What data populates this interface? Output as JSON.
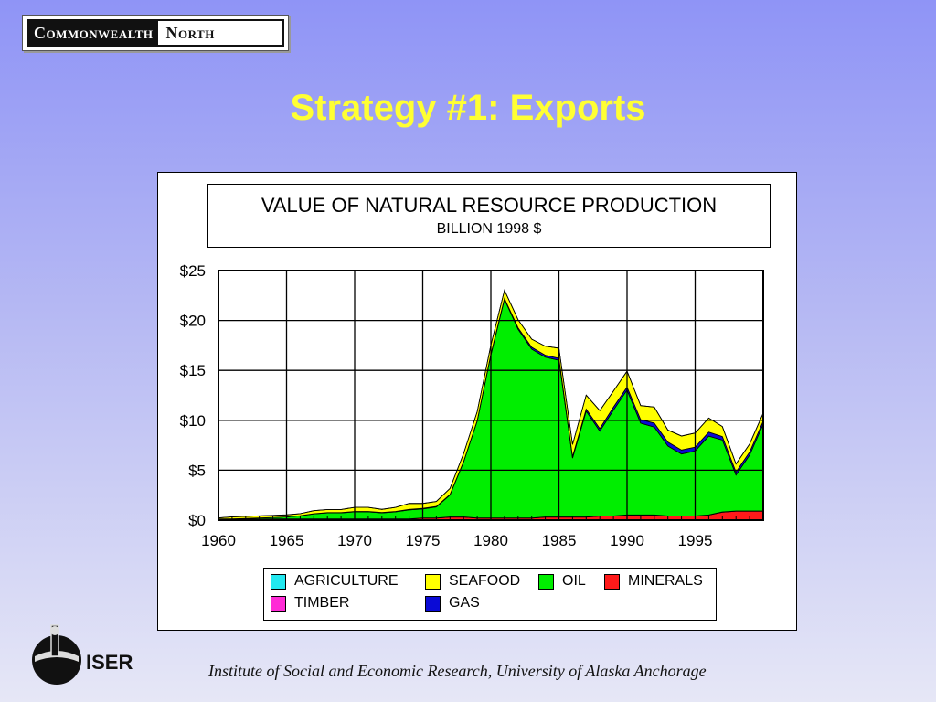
{
  "brand": {
    "left": "Commonwealth",
    "right": "North"
  },
  "slide": {
    "title": "Strategy #1: Exports",
    "footer": "Institute of Social and Economic Research, University of Alaska Anchorage"
  },
  "logo": {
    "text": "ISER",
    "icon": "iser-logo-icon"
  },
  "colors": {
    "agriculture": "#22e8f0",
    "timber": "#ff2bd6",
    "seafood": "#ffff00",
    "gas": "#0a0ad6",
    "oil": "#00ee00",
    "minerals": "#ff1a1a"
  },
  "chart_data": {
    "type": "area",
    "stacked": true,
    "title": "VALUE OF NATURAL RESOURCE PRODUCTION",
    "subtitle": "BILLION 1998 $",
    "xlabel": "",
    "ylabel": "",
    "xlim": [
      1960,
      2000
    ],
    "ylim": [
      0,
      25
    ],
    "grid": true,
    "legend_position": "bottom",
    "x_ticks": [
      "1960",
      "1965",
      "1970",
      "1975",
      "1980",
      "1985",
      "1990",
      "1995"
    ],
    "y_ticks": [
      "$0",
      "$5",
      "$10",
      "$15",
      "$20",
      "$25"
    ],
    "legend": [
      {
        "name": "AGRICULTURE",
        "key": "agriculture"
      },
      {
        "name": "SEAFOOD",
        "key": "seafood"
      },
      {
        "name": "OIL",
        "key": "oil"
      },
      {
        "name": "MINERALS",
        "key": "minerals"
      },
      {
        "name": "TIMBER",
        "key": "timber"
      },
      {
        "name": "GAS",
        "key": "gas"
      }
    ],
    "x": [
      1960,
      1961,
      1962,
      1963,
      1964,
      1965,
      1966,
      1967,
      1968,
      1969,
      1970,
      1971,
      1972,
      1973,
      1974,
      1975,
      1976,
      1977,
      1978,
      1979,
      1980,
      1981,
      1982,
      1983,
      1984,
      1985,
      1986,
      1987,
      1988,
      1989,
      1990,
      1991,
      1992,
      1993,
      1994,
      1995,
      1996,
      1997,
      1998,
      1999,
      2000
    ],
    "series": [
      {
        "name": "MINERALS",
        "key": "minerals",
        "values": [
          0.1,
          0.1,
          0.1,
          0.1,
          0.1,
          0.1,
          0.1,
          0.1,
          0.1,
          0.1,
          0.1,
          0.1,
          0.1,
          0.1,
          0.1,
          0.2,
          0.2,
          0.3,
          0.3,
          0.2,
          0.2,
          0.2,
          0.2,
          0.2,
          0.3,
          0.3,
          0.3,
          0.3,
          0.4,
          0.4,
          0.5,
          0.5,
          0.5,
          0.4,
          0.4,
          0.4,
          0.5,
          0.8,
          0.9,
          0.9,
          0.9
        ]
      },
      {
        "name": "TIMBER",
        "key": "timber",
        "values": [
          0.02,
          0.02,
          0.02,
          0.02,
          0.02,
          0.02,
          0.02,
          0.02,
          0.02,
          0.02,
          0.02,
          0.02,
          0.02,
          0.02,
          0.02,
          0.02,
          0.02,
          0.02,
          0.02,
          0.02,
          0.02,
          0.02,
          0.02,
          0.02,
          0.02,
          0.02,
          0.02,
          0.02,
          0.02,
          0.02,
          0.02,
          0.02,
          0.02,
          0.02,
          0.02,
          0.02,
          0.02,
          0.02,
          0.02,
          0.02,
          0.02
        ]
      },
      {
        "name": "OIL",
        "key": "oil",
        "values": [
          0,
          0,
          0.05,
          0.1,
          0.15,
          0.2,
          0.3,
          0.5,
          0.6,
          0.6,
          0.7,
          0.7,
          0.6,
          0.7,
          0.9,
          0.9,
          1.1,
          2.2,
          5.5,
          9.7,
          16.3,
          21.9,
          18.9,
          16.9,
          16.0,
          15.7,
          5.9,
          10.6,
          8.5,
          10.6,
          12.5,
          9.2,
          8.8,
          7.0,
          6.2,
          6.5,
          7.9,
          7.2,
          3.6,
          5.6,
          8.7
        ]
      },
      {
        "name": "GAS",
        "key": "gas",
        "values": [
          0,
          0,
          0,
          0,
          0,
          0,
          0.02,
          0.02,
          0.03,
          0.03,
          0.05,
          0.05,
          0.05,
          0.05,
          0.05,
          0.05,
          0.05,
          0.05,
          0.05,
          0.05,
          0.1,
          0.1,
          0.15,
          0.2,
          0.2,
          0.2,
          0.15,
          0.2,
          0.25,
          0.3,
          0.3,
          0.35,
          0.4,
          0.4,
          0.4,
          0.4,
          0.4,
          0.35,
          0.3,
          0.3,
          0.3
        ]
      },
      {
        "name": "SEAFOOD",
        "key": "seafood",
        "values": [
          0.1,
          0.2,
          0.2,
          0.2,
          0.2,
          0.2,
          0.2,
          0.3,
          0.3,
          0.3,
          0.4,
          0.4,
          0.3,
          0.4,
          0.6,
          0.5,
          0.5,
          0.6,
          0.8,
          0.9,
          0.9,
          0.8,
          0.8,
          0.8,
          0.9,
          1.0,
          1.2,
          1.4,
          1.8,
          1.6,
          1.6,
          1.4,
          1.6,
          1.2,
          1.4,
          1.4,
          1.4,
          1.0,
          0.8,
          0.8,
          0.8
        ]
      },
      {
        "name": "AGRICULTURE",
        "key": "agriculture",
        "values": [
          0.01,
          0.01,
          0.01,
          0.01,
          0.01,
          0.01,
          0.01,
          0.01,
          0.01,
          0.01,
          0.01,
          0.01,
          0.01,
          0.01,
          0.01,
          0.01,
          0.01,
          0.01,
          0.01,
          0.01,
          0.01,
          0.01,
          0.01,
          0.01,
          0.01,
          0.01,
          0.01,
          0.01,
          0.01,
          0.01,
          0.01,
          0.01,
          0.01,
          0.01,
          0.01,
          0.01,
          0.01,
          0.01,
          0.01,
          0.01,
          0.01
        ]
      }
    ]
  }
}
